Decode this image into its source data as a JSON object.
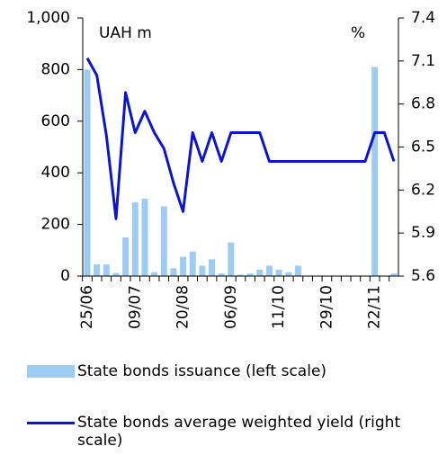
{
  "chart_data": {
    "type": "bar-line",
    "annotations": [
      "UAH m",
      "%"
    ],
    "categories": [
      "25/06",
      null,
      null,
      null,
      null,
      "09/07",
      null,
      null,
      null,
      null,
      "20/08",
      null,
      null,
      null,
      null,
      "06/09",
      null,
      null,
      null,
      null,
      "11/10",
      null,
      null,
      null,
      null,
      "29/10",
      null,
      null,
      null,
      null,
      "22/11",
      null,
      null
    ],
    "series": [
      {
        "name": "State bonds issuance (left scale)",
        "type": "bar",
        "color": "#9dcbf2",
        "values": [
          800,
          45,
          45,
          12,
          150,
          285,
          300,
          15,
          270,
          30,
          75,
          95,
          40,
          65,
          10,
          130,
          5,
          10,
          25,
          40,
          25,
          15,
          40,
          0,
          0,
          0,
          0,
          0,
          0,
          0,
          810,
          0,
          10
        ]
      },
      {
        "name": "State bonds average weighted yield (right scale)",
        "type": "line",
        "axis": "y2",
        "color": "#0a14d2",
        "values": [
          7.12,
          7.0,
          6.58,
          6.0,
          6.88,
          6.6,
          6.75,
          6.6,
          6.49,
          6.25,
          6.05,
          6.6,
          6.4,
          6.6,
          6.4,
          6.6,
          6.6,
          6.6,
          6.6,
          6.4,
          6.4,
          6.4,
          6.4,
          6.4,
          6.4,
          6.4,
          6.4,
          6.4,
          6.4,
          6.4,
          6.6,
          6.6,
          6.4
        ]
      }
    ],
    "ylim": [
      0,
      1000
    ],
    "yticks": [
      0,
      200,
      400,
      600,
      800,
      {
        "value": 1000,
        "label": "1,000"
      }
    ],
    "y2lim": [
      5.6,
      7.4
    ],
    "y2ticks": [
      5.6,
      5.9,
      6.2,
      6.5,
      6.8,
      7.1,
      7.4
    ]
  }
}
